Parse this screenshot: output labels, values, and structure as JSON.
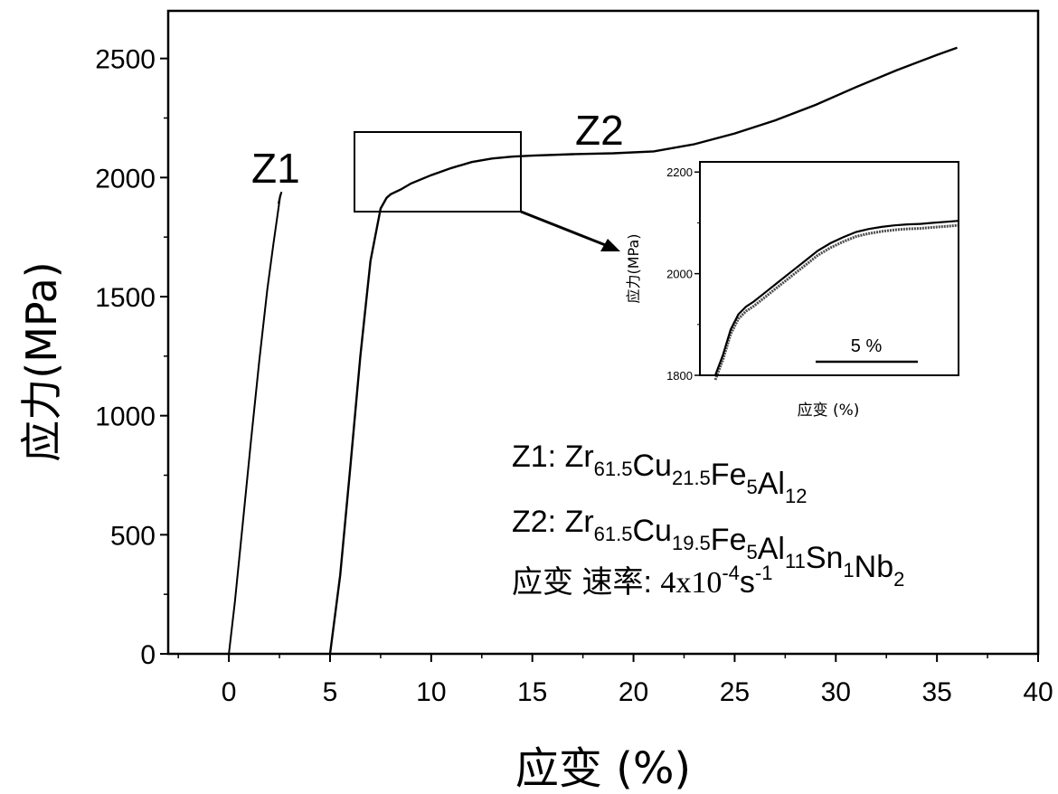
{
  "chart_data": [
    {
      "type": "line",
      "xlabel": "应变 (%)",
      "ylabel": "应力(MPa)",
      "xlim": [
        -3,
        40
      ],
      "ylim": [
        0,
        2700
      ],
      "xticks": [
        0,
        5,
        10,
        15,
        20,
        25,
        30,
        35,
        40
      ],
      "yticks": [
        0,
        500,
        1000,
        1500,
        2000,
        2500
      ],
      "series": [
        {
          "name": "Z1",
          "x": [
            0,
            0.3,
            0.7,
            1.1,
            1.5,
            1.9,
            2.2,
            2.4,
            2.5,
            2.55,
            2.45,
            2.6
          ],
          "y": [
            0,
            220,
            560,
            900,
            1230,
            1530,
            1720,
            1840,
            1900,
            1930,
            1890,
            1940
          ]
        },
        {
          "name": "Z2",
          "x": [
            5,
            5.5,
            6,
            6.5,
            7,
            7.5,
            7.8,
            8,
            8.5,
            9,
            10,
            11,
            12,
            13,
            14,
            15,
            17,
            19,
            21,
            23,
            25,
            27,
            29,
            31,
            33,
            35,
            36
          ],
          "y": [
            0,
            330,
            780,
            1250,
            1650,
            1870,
            1915,
            1930,
            1950,
            1975,
            2010,
            2040,
            2065,
            2080,
            2088,
            2092,
            2098,
            2102,
            2110,
            2140,
            2185,
            2240,
            2305,
            2380,
            2450,
            2515,
            2545
          ]
        }
      ],
      "annotations": [
        "Z1",
        "Z2"
      ],
      "legend_text": {
        "z1_prefix": "Z1: ",
        "z2_prefix": "Z2: ",
        "rate_prefix": "应变  速率:  ",
        "rate_value": "4x10",
        "rate_exp1": "-4",
        "rate_unit": "s",
        "rate_exp2": "-1",
        "z1_formula": [
          {
            "t": "Zr",
            "s": "61.5"
          },
          {
            "t": "Cu",
            "s": "21.5"
          },
          {
            "t": "Fe",
            "s": "5"
          },
          {
            "t": "Al",
            "s": "12"
          }
        ],
        "z2_formula": [
          {
            "t": "Zr",
            "s": "61.5"
          },
          {
            "t": "Cu",
            "s": "19.5"
          },
          {
            "t": "Fe",
            "s": "5"
          },
          {
            "t": "Al",
            "s": "11"
          },
          {
            "t": "Sn",
            "s": "1"
          },
          {
            "t": "Nb",
            "s": "2"
          }
        ]
      }
    },
    {
      "type": "line",
      "title": "",
      "xlabel": "应变 (%)",
      "ylabel": "应力(MPa)",
      "ylim": [
        1800,
        2220
      ],
      "xlim": [
        5.4,
        15.5
      ],
      "yticks": [
        1800,
        2000,
        2200
      ],
      "scale_bar_label": "5 %",
      "scale_bar_length": 5,
      "series": [
        {
          "name": "Z2",
          "x": [
            6.0,
            6.3,
            6.6,
            6.9,
            7.2,
            7.5,
            8.0,
            8.5,
            9.0,
            9.5,
            10.0,
            10.5,
            11.0,
            11.5,
            12.0,
            12.5,
            13.0,
            13.5,
            14.0,
            14.5,
            15.0,
            15.5
          ],
          "y": [
            1800,
            1840,
            1890,
            1920,
            1935,
            1945,
            1965,
            1985,
            2005,
            2025,
            2045,
            2060,
            2072,
            2082,
            2088,
            2092,
            2095,
            2097,
            2098,
            2100,
            2102,
            2104
          ]
        }
      ]
    }
  ]
}
